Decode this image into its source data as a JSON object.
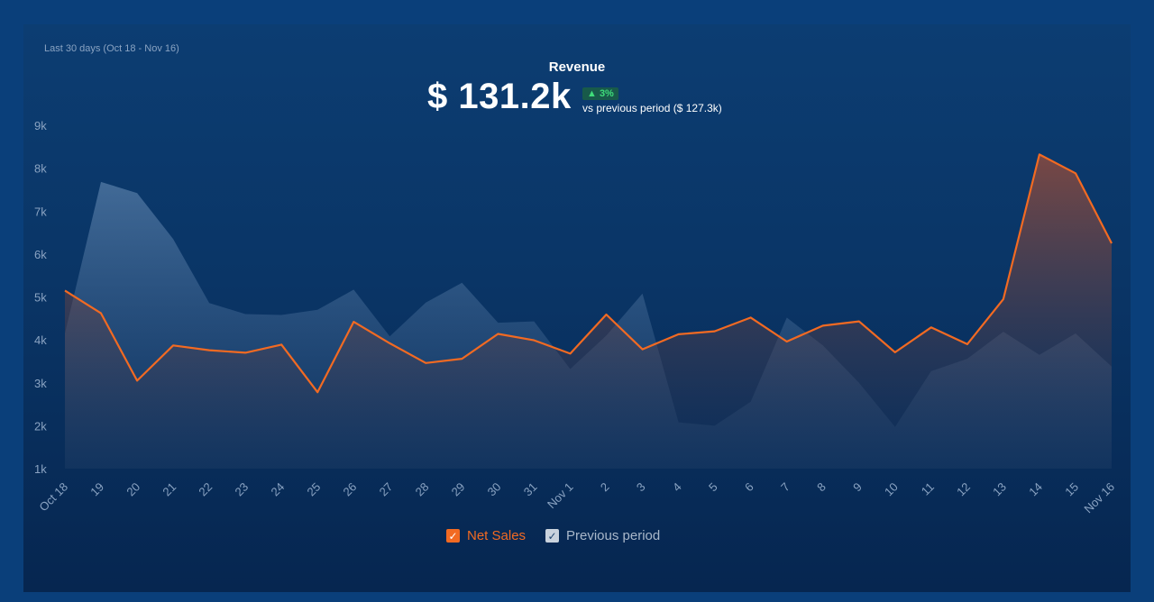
{
  "header": {
    "period": "Last 30 days (Oct 18 - Nov 16)",
    "title": "Revenue",
    "value": "$ 131.2k",
    "change": "▲ 3%",
    "compare": "vs previous period ($ 127.3k)"
  },
  "legend": {
    "net_sales": "Net Sales",
    "previous": "Previous period",
    "check": "✓"
  },
  "colors": {
    "net_sales": "#f26a22",
    "previous": "#5c7fa6"
  },
  "chart_data": {
    "type": "area",
    "title": "Revenue",
    "y_ticks": [
      "1k",
      "2k",
      "3k",
      "4k",
      "5k",
      "6k",
      "7k",
      "8k",
      "9k"
    ],
    "ylim": [
      1000,
      9000
    ],
    "categories": [
      "Oct 18",
      "19",
      "20",
      "21",
      "22",
      "23",
      "24",
      "25",
      "26",
      "27",
      "28",
      "29",
      "30",
      "31",
      "Nov 1",
      "2",
      "3",
      "4",
      "5",
      "6",
      "7",
      "8",
      "9",
      "10",
      "11",
      "12",
      "13",
      "14",
      "15",
      "Nov 16"
    ],
    "series": [
      {
        "name": "Net Sales",
        "values": [
          5150,
          4620,
          3050,
          3870,
          3760,
          3700,
          3890,
          2780,
          4420,
          3920,
          3460,
          3560,
          4140,
          3990,
          3680,
          4590,
          3780,
          4130,
          4200,
          4520,
          3960,
          4330,
          4430,
          3710,
          4290,
          3900,
          4950,
          8320,
          7880,
          6250
        ]
      },
      {
        "name": "Previous period",
        "values": [
          4150,
          7680,
          7420,
          6350,
          4860,
          4600,
          4580,
          4700,
          5170,
          4080,
          4870,
          5330,
          4400,
          4430,
          3320,
          4100,
          5080,
          2080,
          2000,
          2560,
          4520,
          3870,
          3000,
          1970,
          3270,
          3560,
          4190,
          3650,
          4150,
          3380
        ]
      }
    ],
    "grid": false,
    "legend_position": "bottom"
  }
}
